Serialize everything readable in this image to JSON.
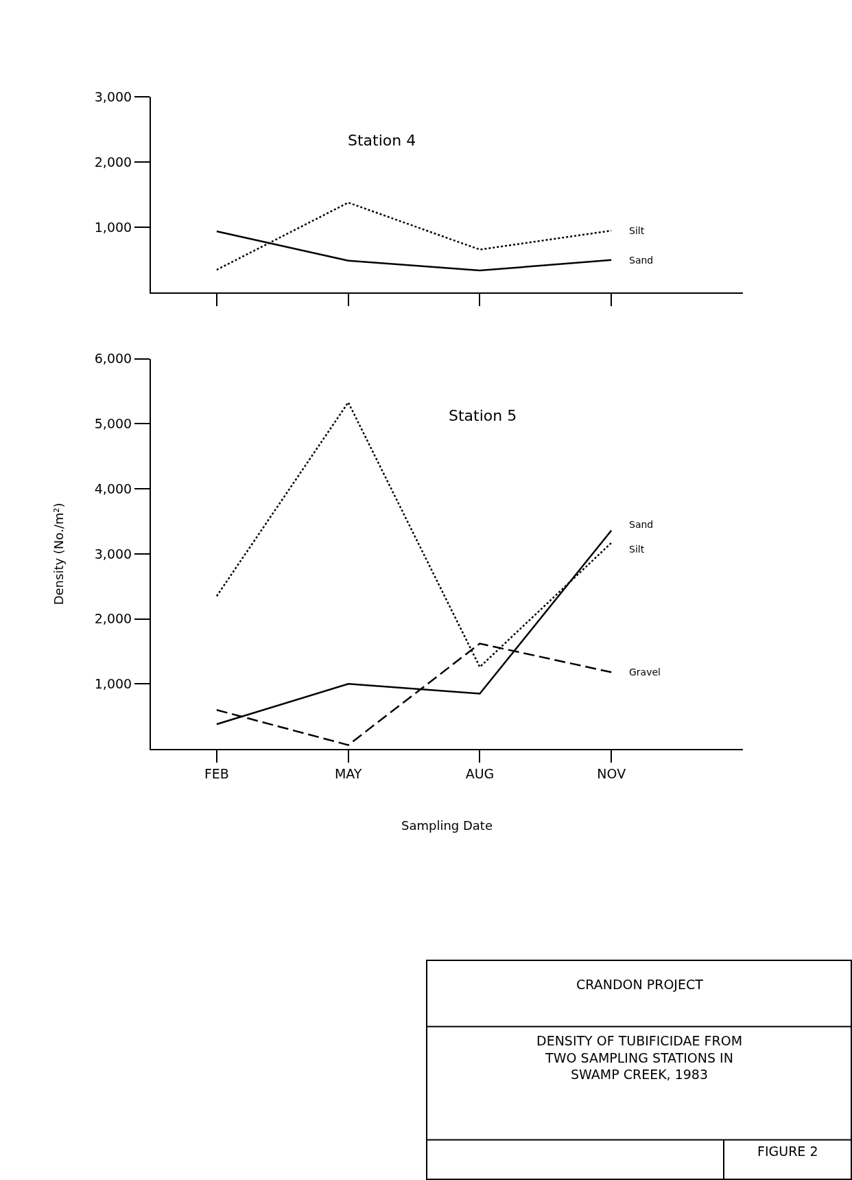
{
  "chart_data": [
    {
      "type": "line",
      "title": "Station 4",
      "categories": [
        null,
        null,
        null,
        null
      ],
      "ylim": [
        0,
        3000
      ],
      "yticks": [
        {
          "value": 1000,
          "label": "1,000"
        },
        {
          "value": 2000,
          "label": "2,000"
        },
        {
          "value": 3000,
          "label": "3,000"
        }
      ],
      "tick_labels": "y",
      "legend": false,
      "marker": "none",
      "series": [
        {
          "name": "Silt",
          "color": "#000000",
          "line_style": "dotted",
          "values": [
            350,
            1380,
            660,
            950
          ]
        },
        {
          "name": "Sand",
          "color": "#000000",
          "line_style": "solid",
          "values": [
            940,
            490,
            340,
            500
          ]
        }
      ]
    },
    {
      "type": "line",
      "title": "Station 5",
      "categories": [
        "FEB",
        "MAY",
        "AUG",
        "NOV"
      ],
      "xlabel": "Sampling Date",
      "ylabel": "Density (No./m²)",
      "ylim": [
        0,
        6000
      ],
      "yticks": [
        {
          "value": 1000,
          "label": "1,000"
        },
        {
          "value": 2000,
          "label": "2,000"
        },
        {
          "value": 3000,
          "label": "3,000"
        },
        {
          "value": 4000,
          "label": "4,000"
        },
        {
          "value": 5000,
          "label": "5,000"
        },
        {
          "value": 6000,
          "label": "6,000"
        }
      ],
      "legend": false,
      "marker": "none",
      "series": [
        {
          "name": "Sand",
          "color": "#000000",
          "line_style": "solid",
          "values": [
            380,
            1000,
            850,
            3360
          ]
        },
        {
          "name": "Silt",
          "color": "#000000",
          "line_style": "dotted",
          "values": [
            2350,
            5330,
            1260,
            3170
          ]
        },
        {
          "name": "Gravel",
          "color": "#000000",
          "line_style": "dashed",
          "values": [
            600,
            60,
            1620,
            1180
          ]
        }
      ],
      "annotations": [
        "CRANDON PROJECT",
        "DENSITY OF TUBIFICIDAE FROM TWO SAMPLING STATIONS IN SWAMP CREEK, 1983",
        "FIGURE 2"
      ]
    }
  ]
}
